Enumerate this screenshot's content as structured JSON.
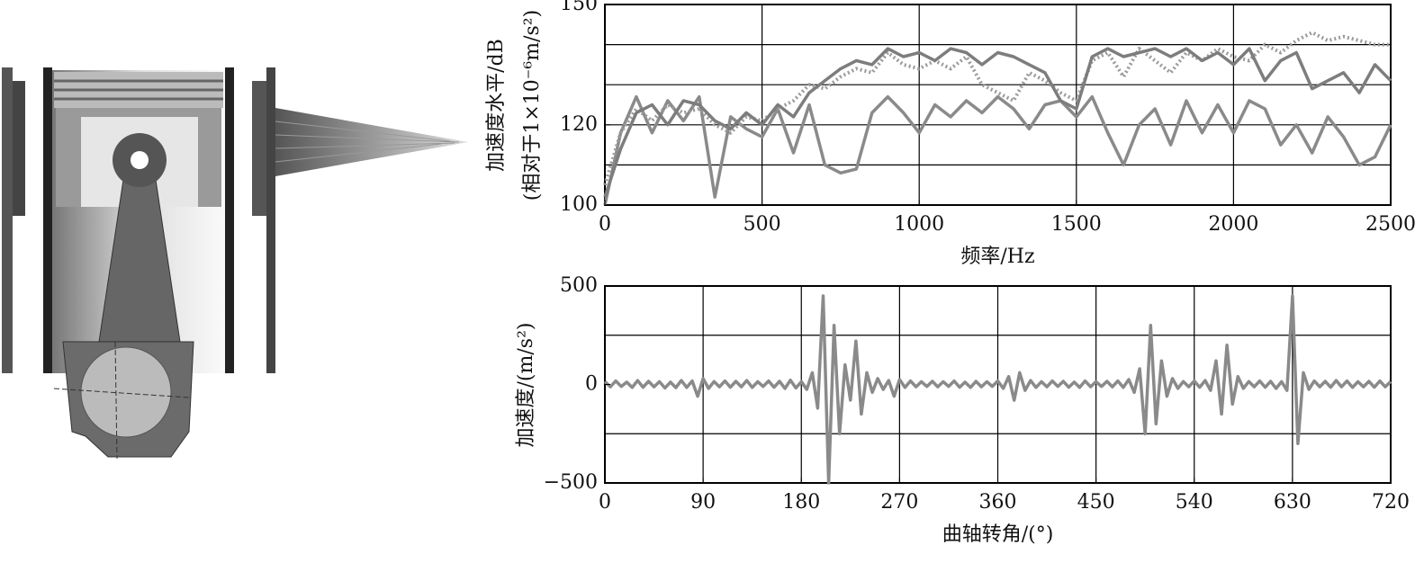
{
  "chart_data": [
    {
      "type": "line",
      "x_label": "频率/Hz",
      "y_label_lines": [
        "加速度水平/dB",
        "(相对于1×10⁻⁶m/s²)"
      ],
      "x": [
        0,
        50,
        100,
        150,
        200,
        250,
        300,
        350,
        400,
        450,
        500,
        550,
        600,
        650,
        700,
        750,
        800,
        850,
        900,
        950,
        1000,
        1050,
        1100,
        1150,
        1200,
        1250,
        1300,
        1350,
        1400,
        1450,
        1500,
        1550,
        1600,
        1650,
        1700,
        1750,
        1800,
        1850,
        1900,
        1950,
        2000,
        2050,
        2100,
        2150,
        2200,
        2250,
        2300,
        2350,
        2400,
        2450,
        2500
      ],
      "series": [
        {
          "color": "#8a8a8a",
          "line_style": "solid",
          "values": [
            100,
            118,
            127,
            118,
            126,
            121,
            127,
            102,
            122,
            119,
            117,
            124,
            113,
            125,
            110,
            108,
            109,
            123,
            127,
            123,
            118,
            125,
            122,
            126,
            123,
            127,
            124,
            119,
            125,
            126,
            122,
            127,
            118,
            110,
            120,
            124,
            115,
            126,
            118,
            125,
            118,
            126,
            124,
            115,
            120,
            113,
            122,
            117,
            110,
            112,
            120
          ]
        },
        {
          "color": "#9a9a9a",
          "line_style": "dotted",
          "values": [
            105,
            118,
            124,
            121,
            125,
            123,
            124,
            120,
            118,
            122,
            121,
            124,
            126,
            130,
            129,
            132,
            134,
            133,
            138,
            135,
            134,
            136,
            134,
            137,
            130,
            128,
            126,
            133,
            131,
            128,
            126,
            136,
            138,
            132,
            139,
            136,
            133,
            138,
            136,
            139,
            137,
            136,
            140,
            138,
            141,
            143,
            141,
            142,
            141,
            140,
            140
          ]
        },
        {
          "color": "#7d7d7d",
          "line_style": "solid",
          "values": [
            102,
            114,
            123,
            125,
            120,
            126,
            125,
            121,
            119,
            123,
            120,
            125,
            122,
            128,
            131,
            134,
            136,
            135,
            139,
            137,
            138,
            136,
            139,
            138,
            135,
            138,
            137,
            135,
            133,
            126,
            124,
            137,
            139,
            137,
            138,
            139,
            137,
            139,
            136,
            138,
            135,
            139,
            131,
            136,
            138,
            129,
            131,
            133,
            128,
            135,
            131
          ]
        }
      ],
      "xlim": [
        0,
        2500
      ],
      "xticks": [
        0,
        500,
        1000,
        1500,
        2000,
        2500
      ],
      "ylim": [
        100,
        150
      ],
      "yticks": [
        100,
        120,
        150
      ],
      "ygrid": [
        110,
        120,
        130,
        140
      ],
      "grid": true
    },
    {
      "type": "line",
      "x_label": "曲轴转角/(°)",
      "y_label_lines": [
        "加速度/(m/s²)"
      ],
      "x": [
        0,
        5,
        10,
        15,
        20,
        25,
        30,
        35,
        40,
        45,
        50,
        55,
        60,
        65,
        70,
        75,
        80,
        85,
        90,
        95,
        100,
        105,
        110,
        115,
        120,
        125,
        130,
        135,
        140,
        145,
        150,
        155,
        160,
        165,
        170,
        175,
        180,
        185,
        190,
        195,
        200,
        205,
        210,
        215,
        220,
        225,
        230,
        235,
        240,
        245,
        250,
        255,
        260,
        265,
        270,
        275,
        280,
        285,
        290,
        295,
        300,
        305,
        310,
        315,
        320,
        325,
        330,
        335,
        340,
        345,
        350,
        355,
        360,
        365,
        370,
        375,
        380,
        385,
        390,
        395,
        400,
        405,
        410,
        415,
        420,
        425,
        430,
        435,
        440,
        445,
        450,
        455,
        460,
        465,
        470,
        475,
        480,
        485,
        490,
        495,
        500,
        505,
        510,
        515,
        520,
        525,
        530,
        535,
        540,
        545,
        550,
        555,
        560,
        565,
        570,
        575,
        580,
        585,
        590,
        595,
        600,
        605,
        610,
        615,
        620,
        625,
        630,
        635,
        640,
        645,
        650,
        655,
        660,
        665,
        670,
        675,
        680,
        685,
        690,
        695,
        700,
        705,
        710,
        715,
        720
      ],
      "series": [
        {
          "color": "#8a8a8a",
          "line_style": "solid",
          "values": [
            15,
            -12,
            18,
            -10,
            12,
            -15,
            20,
            -14,
            16,
            -12,
            14,
            -18,
            12,
            -16,
            20,
            -15,
            18,
            -60,
            30,
            -20,
            15,
            -12,
            18,
            -14,
            16,
            -12,
            20,
            -15,
            14,
            -10,
            18,
            -14,
            16,
            -20,
            22,
            -18,
            14,
            -25,
            60,
            -120,
            450,
            -500,
            300,
            -250,
            100,
            -80,
            220,
            -150,
            60,
            -40,
            30,
            -25,
            20,
            -60,
            25,
            -15,
            18,
            -12,
            14,
            -10,
            16,
            -12,
            14,
            -10,
            18,
            -14,
            12,
            -15,
            16,
            -12,
            14,
            -10,
            18,
            -20,
            40,
            -80,
            60,
            -30,
            20,
            -15,
            14,
            -12,
            18,
            -10,
            16,
            -14,
            12,
            -15,
            18,
            -12,
            14,
            -10,
            16,
            -12,
            18,
            -15,
            25,
            -40,
            80,
            -250,
            300,
            -200,
            120,
            -60,
            30,
            -20,
            15,
            -12,
            18,
            -14,
            20,
            -30,
            120,
            -150,
            200,
            -100,
            40,
            -20,
            15,
            -12,
            18,
            -14,
            16,
            -20,
            14,
            -30,
            450,
            -300,
            60,
            -25,
            18,
            -12,
            16,
            -14,
            20,
            -12,
            18,
            -15,
            14,
            -12,
            16,
            -14,
            18,
            -12,
            15
          ]
        }
      ],
      "xlim": [
        0,
        720
      ],
      "xticks": [
        0,
        90,
        180,
        270,
        360,
        450,
        540,
        630,
        720
      ],
      "ylim": [
        -500,
        500
      ],
      "yticks": [
        {
          "value": -500,
          "label": "−500"
        },
        0,
        500
      ],
      "ygrid": [
        -250,
        250
      ],
      "grid": true
    }
  ]
}
